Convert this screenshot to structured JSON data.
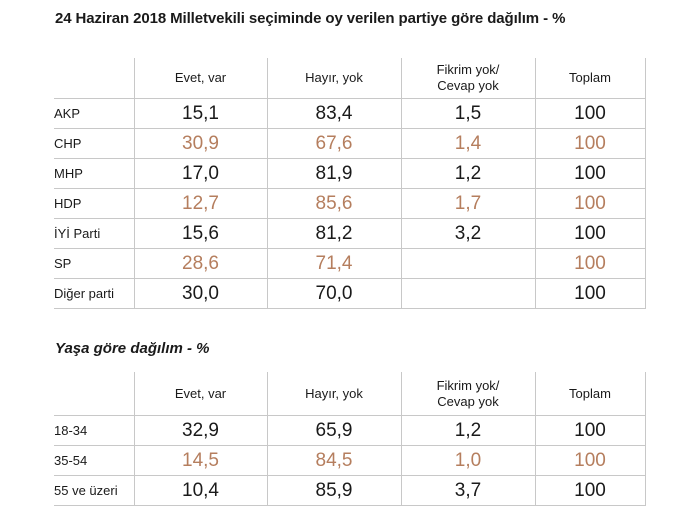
{
  "table1": {
    "title": "24 Haziran 2018 Milletvekili seçiminde oy verilen partiye göre dağılım - %",
    "headers": [
      "",
      "Evet, var",
      "Hayır, yok",
      "Fikrim yok/\nCevap yok",
      "Toplam"
    ],
    "rows": [
      {
        "label": "AKP",
        "values": [
          "15,1",
          "83,4",
          "1,5",
          "100"
        ],
        "alt": false
      },
      {
        "label": "CHP",
        "values": [
          "30,9",
          "67,6",
          "1,4",
          "100"
        ],
        "alt": true
      },
      {
        "label": "MHP",
        "values": [
          "17,0",
          "81,9",
          "1,2",
          "100"
        ],
        "alt": false
      },
      {
        "label": "HDP",
        "values": [
          "12,7",
          "85,6",
          "1,7",
          "100"
        ],
        "alt": true
      },
      {
        "label": "İYİ Parti",
        "values": [
          "15,6",
          "81,2",
          "3,2",
          "100"
        ],
        "alt": false
      },
      {
        "label": "SP",
        "values": [
          "28,6",
          "71,4",
          "",
          "100"
        ],
        "alt": true
      },
      {
        "label": "Diğer parti",
        "values": [
          "30,0",
          "70,0",
          "",
          "100"
        ],
        "alt": false
      }
    ]
  },
  "table2": {
    "title": "Yaşa göre dağılım - %",
    "headers": [
      "",
      "Evet, var",
      "Hayır, yok",
      "Fikrim yok/\nCevap yok",
      "Toplam"
    ],
    "rows": [
      {
        "label": "18-34",
        "values": [
          "32,9",
          "65,9",
          "1,2",
          "100"
        ],
        "alt": false
      },
      {
        "label": "35-54",
        "values": [
          "14,5",
          "84,5",
          "1,0",
          "100"
        ],
        "alt": true
      },
      {
        "label": "55 ve üzeri",
        "values": [
          "10,4",
          "85,9",
          "3,7",
          "100"
        ],
        "alt": false
      }
    ]
  },
  "colors": {
    "text": "#1a1a1a",
    "alt_row_text": "#b57e5e",
    "grid_line": "#c8c8c8"
  }
}
